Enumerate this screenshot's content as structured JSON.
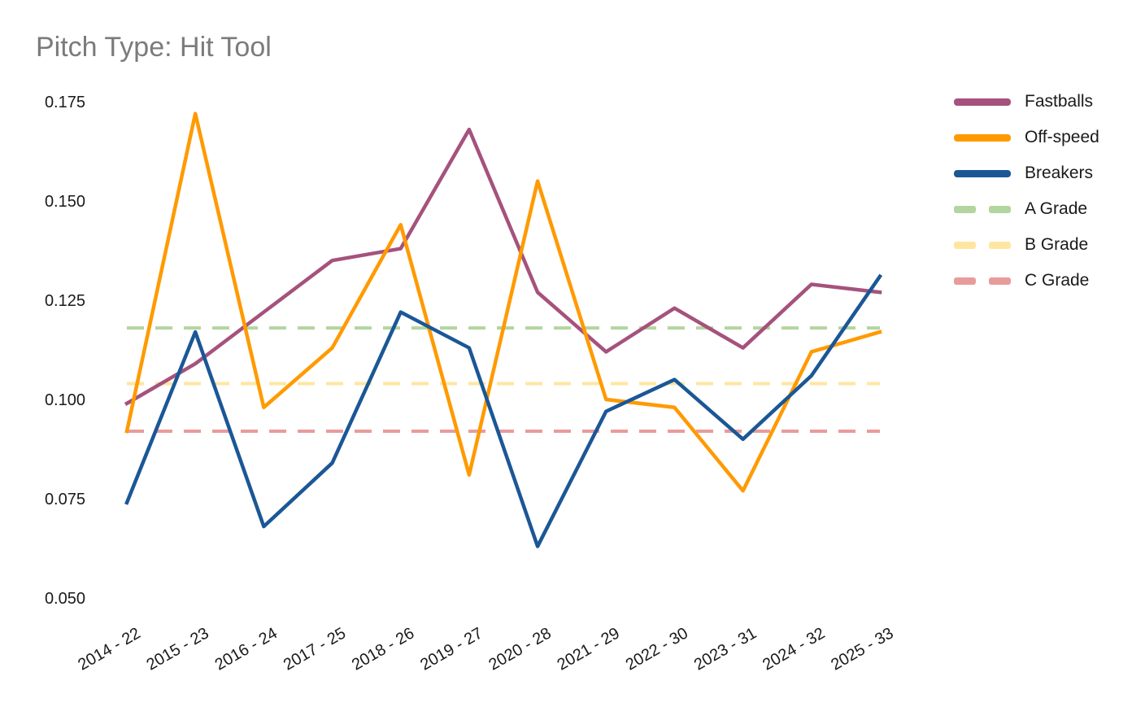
{
  "title": "Pitch Type: Hit Tool",
  "chart_data": {
    "type": "line",
    "title": "Pitch Type: Hit Tool",
    "categories": [
      "2014 - 22",
      "2015 - 23",
      "2016 - 24",
      "2017 - 25",
      "2018 - 26",
      "2019 - 27",
      "2020 - 28",
      "2021 - 29",
      "2022 - 30",
      "2023 - 31",
      "2024 - 32",
      "2025 - 33"
    ],
    "series": [
      {
        "name": "Fastballs",
        "color": "#A5527D",
        "values": [
          0.099,
          0.109,
          0.122,
          0.135,
          0.138,
          0.168,
          0.127,
          0.112,
          0.123,
          0.113,
          0.129,
          0.127
        ]
      },
      {
        "name": "Off-speed",
        "color": "#FF9A00",
        "values": [
          0.092,
          0.172,
          0.098,
          0.113,
          0.144,
          0.081,
          0.155,
          0.1,
          0.098,
          0.077,
          0.112,
          0.117
        ]
      },
      {
        "name": "Breakers",
        "color": "#1B5796",
        "values": [
          0.074,
          0.117,
          0.068,
          0.084,
          0.122,
          0.113,
          0.063,
          0.097,
          0.105,
          0.09,
          0.106,
          0.131
        ]
      }
    ],
    "ref_lines": [
      {
        "name": "A Grade",
        "color": "#B3D5A0",
        "value": 0.118
      },
      {
        "name": "B Grade",
        "color": "#FFE6A0",
        "value": 0.104
      },
      {
        "name": "C Grade",
        "color": "#E89B9B",
        "value": 0.092
      }
    ],
    "y_axis": {
      "tick_labels": [
        "0.175",
        "0.150",
        "0.125",
        "0.100",
        "0.075",
        "0.050"
      ],
      "tick_values": [
        0.175,
        0.15,
        0.125,
        0.1,
        0.075,
        0.05
      ],
      "min": 0.05,
      "max": 0.175
    },
    "x_axis": {
      "tick_rotation_deg": -30
    },
    "legend_position": "right",
    "grid": false,
    "background": "#FFFFFF",
    "title_color": "#7B7B7B"
  }
}
